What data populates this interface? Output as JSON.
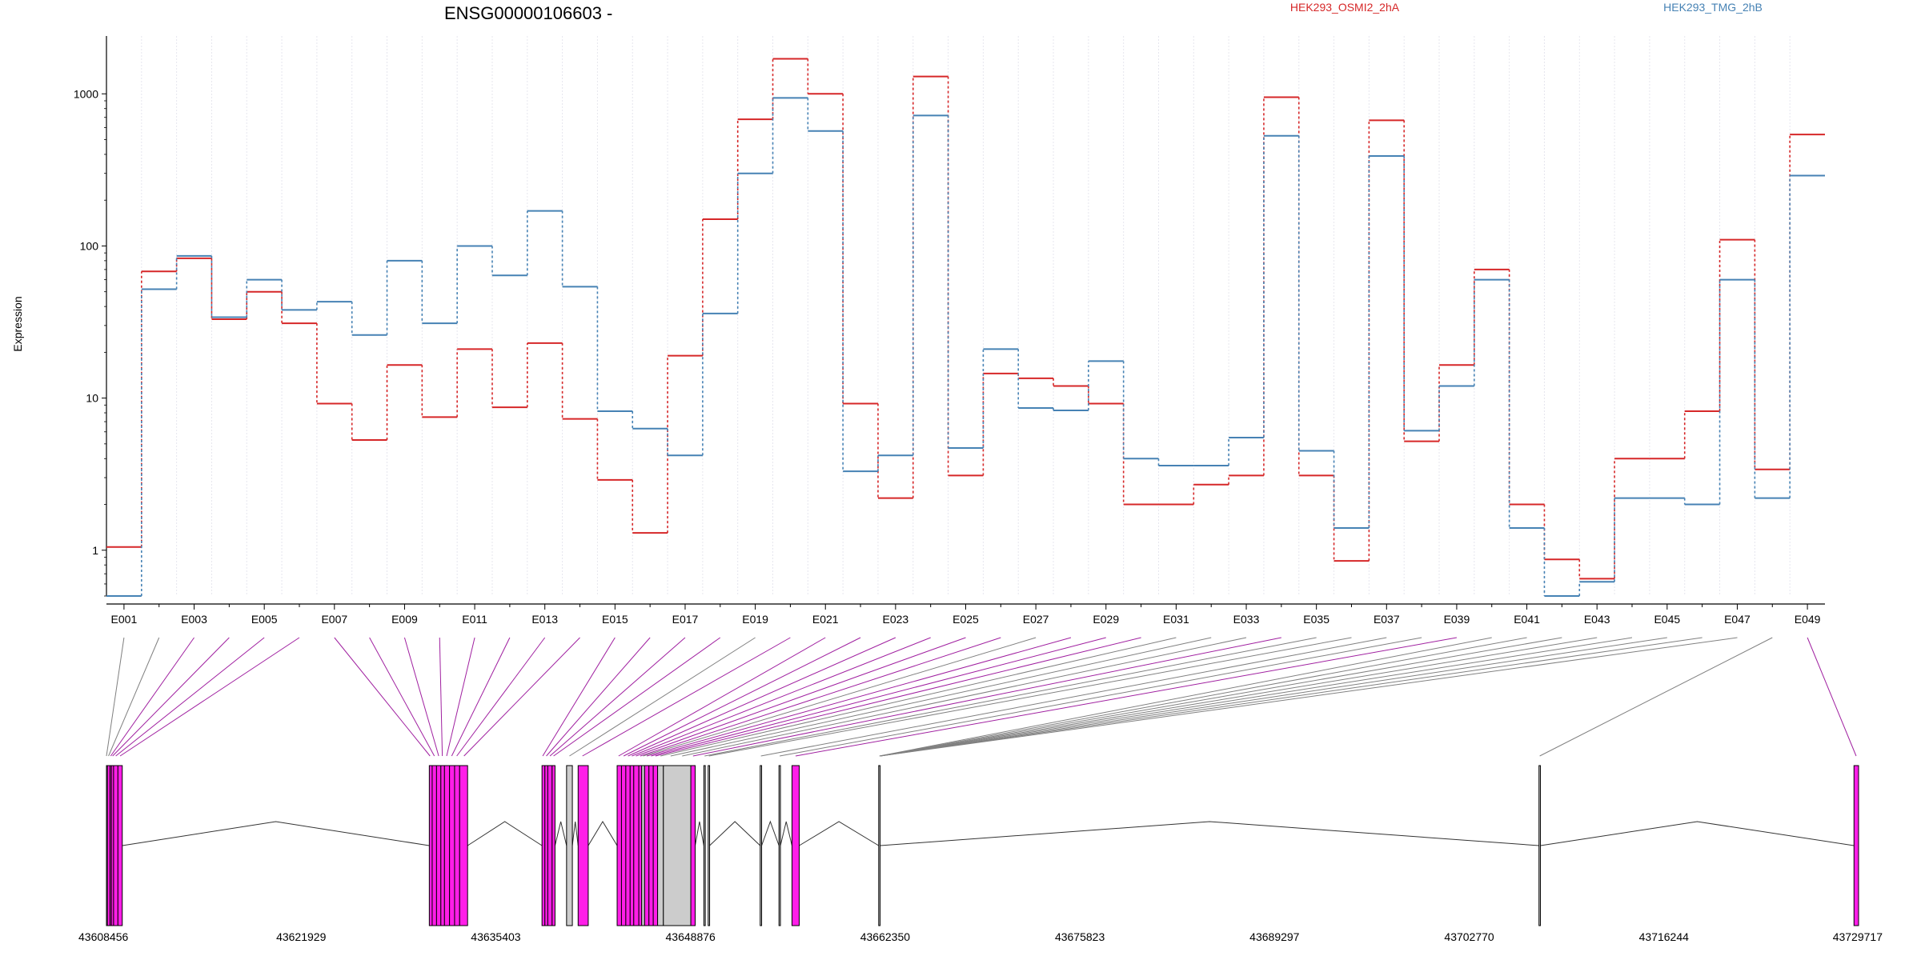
{
  "chart_data": {
    "type": "line",
    "title": "ENSG00000106603 -",
    "ylabel": "Expression",
    "xlabel": "",
    "y_scale": "log",
    "ylim": [
      0.5,
      2400
    ],
    "y_ticks": [
      1,
      10,
      100,
      1000
    ],
    "y_tick_labels": [
      "1",
      "10",
      "100",
      "1000"
    ],
    "x_tick_labels": [
      "E001",
      "E003",
      "E005",
      "E007",
      "E009",
      "E011",
      "E013",
      "E015",
      "E017",
      "E019",
      "E021",
      "E023",
      "E025",
      "E027",
      "E029",
      "E031",
      "E033",
      "E035",
      "E037",
      "E039",
      "E041",
      "E043",
      "E045",
      "E047",
      "E049"
    ],
    "grid": "vertical dotted lines at each exon bin",
    "legend_position": "top-right",
    "categories": [
      "E001",
      "E002",
      "E003",
      "E004",
      "E005",
      "E006",
      "E007",
      "E008",
      "E009",
      "E010",
      "E011",
      "E012",
      "E013",
      "E014",
      "E015",
      "E016",
      "E017",
      "E018",
      "E019",
      "E020",
      "E021",
      "E022",
      "E023",
      "E024",
      "E025",
      "E026",
      "E027",
      "E028",
      "E029",
      "E030",
      "E031",
      "E032",
      "E033",
      "E034",
      "E035",
      "E036",
      "E037",
      "E038",
      "E039",
      "E040",
      "E041",
      "E042",
      "E043",
      "E044",
      "E045",
      "E046",
      "E047",
      "E048",
      "E049"
    ],
    "series": [
      {
        "name": "HEK293_OSMI2_2hA",
        "color": "#d62728",
        "values": [
          1.05,
          68,
          83,
          33,
          50,
          31,
          9.2,
          5.3,
          16.5,
          7.5,
          21,
          8.7,
          23,
          7.3,
          2.9,
          1.3,
          19,
          150,
          680,
          1700,
          1000,
          9.2,
          2.2,
          1300,
          3.1,
          14.5,
          13.5,
          12,
          9.2,
          2,
          2,
          2.7,
          3.1,
          950,
          3.1,
          0.85,
          670,
          5.2,
          16.5,
          70,
          2,
          0.87,
          0.65,
          4,
          4,
          8.2,
          110,
          3.4,
          540
        ]
      },
      {
        "name": "HEK293_TMG_2hB",
        "color": "#4682b4",
        "values": [
          0.5,
          52,
          86,
          34,
          60,
          38,
          43,
          26,
          80,
          31,
          100,
          64,
          170,
          54,
          8.2,
          6.3,
          4.2,
          36,
          300,
          940,
          570,
          3.3,
          4.2,
          720,
          4.7,
          21,
          8.6,
          8.3,
          17.5,
          4,
          3.6,
          3.6,
          5.5,
          530,
          4.5,
          1.4,
          390,
          6.1,
          12,
          60,
          1.4,
          0.5,
          0.62,
          2.2,
          2.2,
          2,
          60,
          2.2,
          290
        ]
      }
    ],
    "gene_model": {
      "coordinate_labels": [
        "43608456",
        "43621929",
        "43635403",
        "43648876",
        "43662350",
        "43675823",
        "43689297",
        "43702770",
        "43716244",
        "43729717"
      ],
      "coordinate_range": [
        43608456,
        43729717
      ],
      "exon_fill": "#ff1ee8",
      "noncounted_fill": "#cccccc",
      "exons": [
        {
          "start": 43608456,
          "end": 43608520,
          "type": "gray"
        },
        {
          "start": 43608520,
          "end": 43608700,
          "type": "magenta"
        },
        {
          "start": 43608700,
          "end": 43608800,
          "type": "magenta"
        },
        {
          "start": 43608800,
          "end": 43608950,
          "type": "magenta"
        },
        {
          "start": 43608950,
          "end": 43609250,
          "type": "magenta"
        },
        {
          "start": 43609250,
          "end": 43609550,
          "type": "magenta"
        },
        {
          "start": 43630800,
          "end": 43631000,
          "type": "magenta"
        },
        {
          "start": 43631000,
          "end": 43631300,
          "type": "magenta"
        },
        {
          "start": 43631300,
          "end": 43631600,
          "type": "magenta"
        },
        {
          "start": 43631600,
          "end": 43631850,
          "type": "magenta"
        },
        {
          "start": 43631850,
          "end": 43632200,
          "type": "magenta"
        },
        {
          "start": 43632200,
          "end": 43632550,
          "type": "magenta"
        },
        {
          "start": 43632550,
          "end": 43632900,
          "type": "magenta"
        },
        {
          "start": 43632900,
          "end": 43633450,
          "type": "magenta"
        },
        {
          "start": 43638600,
          "end": 43638800,
          "type": "magenta"
        },
        {
          "start": 43638800,
          "end": 43639000,
          "type": "magenta"
        },
        {
          "start": 43639000,
          "end": 43639300,
          "type": "magenta"
        },
        {
          "start": 43639300,
          "end": 43639500,
          "type": "magenta"
        },
        {
          "start": 43640300,
          "end": 43640700,
          "type": "gray"
        },
        {
          "start": 43641100,
          "end": 43641800,
          "type": "magenta"
        },
        {
          "start": 43643800,
          "end": 43644100,
          "type": "magenta"
        },
        {
          "start": 43644100,
          "end": 43644400,
          "type": "magenta"
        },
        {
          "start": 43644400,
          "end": 43644700,
          "type": "magenta"
        },
        {
          "start": 43644700,
          "end": 43644950,
          "type": "magenta"
        },
        {
          "start": 43644950,
          "end": 43645300,
          "type": "magenta"
        },
        {
          "start": 43645300,
          "end": 43645500,
          "type": "magenta"
        },
        {
          "start": 43645500,
          "end": 43645700,
          "type": "gray"
        },
        {
          "start": 43645700,
          "end": 43646000,
          "type": "magenta"
        },
        {
          "start": 43646000,
          "end": 43646300,
          "type": "magenta"
        },
        {
          "start": 43646300,
          "end": 43646600,
          "type": "magenta"
        },
        {
          "start": 43646600,
          "end": 43647000,
          "type": "gray"
        },
        {
          "start": 43647000,
          "end": 43648900,
          "type": "gray"
        },
        {
          "start": 43648900,
          "end": 43649200,
          "type": "magenta"
        },
        {
          "start": 43649800,
          "end": 43649900,
          "type": "gray"
        },
        {
          "start": 43650100,
          "end": 43650200,
          "type": "gray"
        },
        {
          "start": 43653700,
          "end": 43653800,
          "type": "gray"
        },
        {
          "start": 43655000,
          "end": 43655100,
          "type": "gray"
        },
        {
          "start": 43655900,
          "end": 43656400,
          "type": "magenta"
        },
        {
          "start": 43661900,
          "end": 43662000,
          "type": "gray"
        },
        {
          "start": 43707600,
          "end": 43707700,
          "type": "gray"
        },
        {
          "start": 43729400,
          "end": 43729717,
          "type": "magenta"
        }
      ],
      "introns": [
        {
          "start": 43609550,
          "end": 43630800,
          "peak": true
        },
        {
          "start": 43633450,
          "end": 43638600,
          "peak": true
        },
        {
          "start": 43639500,
          "end": 43640300,
          "peak": true
        },
        {
          "start": 43640700,
          "end": 43641100,
          "peak": true
        },
        {
          "start": 43641800,
          "end": 43643800,
          "peak": true
        },
        {
          "start": 43649200,
          "end": 43649800,
          "peak": true
        },
        {
          "start": 43650200,
          "end": 43653700,
          "peak": true
        },
        {
          "start": 43653800,
          "end": 43655000,
          "peak": true
        },
        {
          "start": 43655100,
          "end": 43655900,
          "peak": true
        },
        {
          "start": 43656400,
          "end": 43661900,
          "peak": true
        },
        {
          "start": 43662000,
          "end": 43707600,
          "peak": true
        },
        {
          "start": 43707700,
          "end": 43729400,
          "peak": true
        }
      ],
      "bin_coordinates": [
        43608456,
        43608600,
        43608750,
        43608880,
        43609100,
        43609400,
        43630850,
        43631150,
        43631450,
        43631700,
        43632000,
        43632350,
        43632700,
        43633200,
        43638650,
        43638900,
        43639150,
        43639400,
        43640500,
        43641400,
        43643900,
        43644250,
        43644550,
        43644820,
        43645100,
        43645400,
        43645600,
        43645850,
        43646150,
        43646450,
        43646800,
        43647500,
        43648300,
        43649050,
        43649850,
        43650150,
        43653750,
        43655050,
        43656150,
        43661950,
        43662000,
        43662000,
        43662000,
        43662000,
        43662000,
        43662000,
        43662000,
        43707650,
        43729550
      ],
      "bin_link_colors": [
        "gray",
        "gray",
        "magenta",
        "magenta",
        "magenta",
        "magenta",
        "magenta",
        "magenta",
        "magenta",
        "magenta",
        "magenta",
        "magenta",
        "magenta",
        "magenta",
        "magenta",
        "magenta",
        "magenta",
        "magenta",
        "gray",
        "magenta",
        "magenta",
        "magenta",
        "magenta",
        "magenta",
        "magenta",
        "magenta",
        "gray",
        "magenta",
        "magenta",
        "magenta",
        "gray",
        "gray",
        "gray",
        "magenta",
        "gray",
        "gray",
        "gray",
        "gray",
        "magenta",
        "gray",
        "gray",
        "gray",
        "gray",
        "gray",
        "gray",
        "gray",
        "gray",
        "gray",
        "magenta"
      ]
    }
  }
}
